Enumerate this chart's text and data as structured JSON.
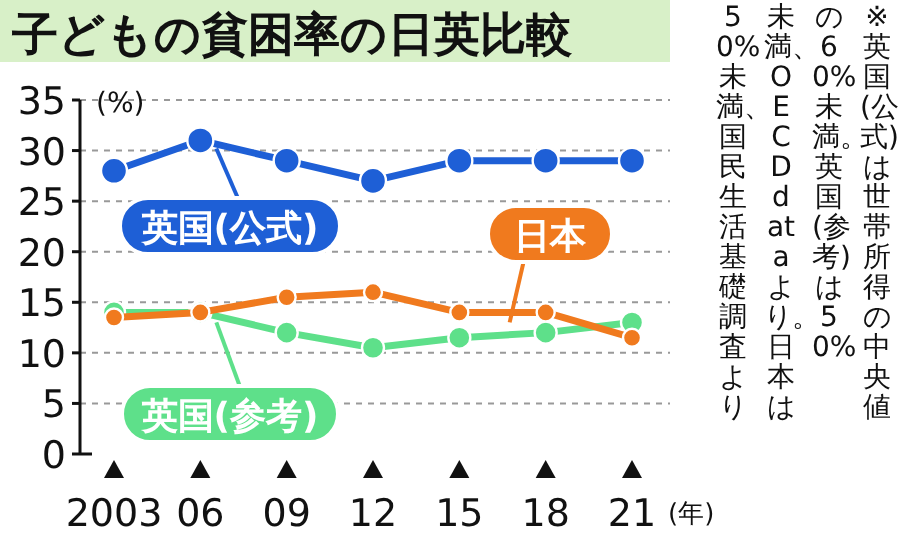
{
  "chart_data": {
    "type": "line",
    "title": "子どもの貧困率の日英比較",
    "ylabel": "(%)",
    "xlabel": "(年)",
    "categories": [
      "2003",
      "06",
      "09",
      "12",
      "15",
      "18",
      "21"
    ],
    "series": [
      {
        "name": "英国(公式)",
        "color": "#1e5fd6",
        "values": [
          28,
          31,
          29,
          27,
          29,
          29,
          29
        ]
      },
      {
        "name": "英国(参考)",
        "color": "#5ee08a",
        "values": [
          14,
          14,
          12,
          10.5,
          11.5,
          12,
          13
        ]
      },
      {
        "name": "日本",
        "color": "#f07a1e",
        "values": [
          13.5,
          14,
          15.5,
          16,
          14,
          14,
          11.5
        ]
      }
    ],
    "ylim": [
      0,
      35
    ],
    "yticks": [
      0,
      5,
      10,
      15,
      20,
      25,
      30,
      35
    ],
    "grid": "y",
    "marker": "circle",
    "legend": false,
    "annotations": [
      "※英国(公式)は世帯所得の中央値",
      "の60%未満。英国(参考)は50%",
      "未満、OECD dataより。日本は",
      "50%未満、国民生活基礎調査より"
    ]
  }
}
